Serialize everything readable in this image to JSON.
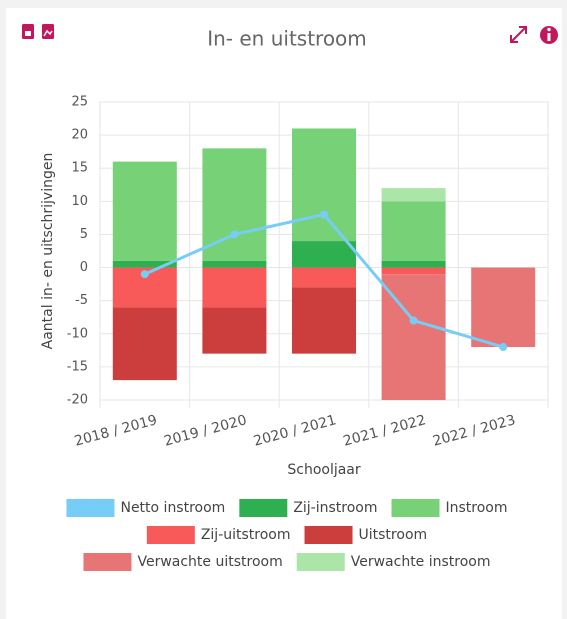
{
  "chart_data": {
    "type": "bar",
    "title": "In- en uitstroom",
    "xlabel": "Schooljaar",
    "ylabel": "Aantal in- en uitschrijvingen",
    "categories": [
      "2018 / 2019",
      "2019 / 2020",
      "2020 / 2021",
      "2021 / 2022",
      "2022 / 2023"
    ],
    "stacked": true,
    "grid": true,
    "legend": "bottom",
    "ylim": [
      -20,
      25
    ],
    "yticks": [
      -20,
      -15,
      -10,
      -5,
      0,
      5,
      10,
      15,
      20,
      25
    ],
    "series": [
      {
        "name": "Netto instroom",
        "type": "line",
        "color": "#76cdf5",
        "values": [
          -1,
          5,
          8,
          -8,
          -12
        ]
      },
      {
        "name": "Zij-instroom",
        "color": "#2fb050",
        "values": [
          1,
          1,
          4,
          1,
          0
        ]
      },
      {
        "name": "Instroom",
        "color": "#77d177",
        "values": [
          15,
          17,
          17,
          9,
          0
        ]
      },
      {
        "name": "Zij-uitstroom",
        "color": "#f85a5a",
        "values": [
          -6,
          -6,
          -3,
          -1,
          0
        ]
      },
      {
        "name": "Uitstroom",
        "color": "#cc3d3d",
        "values": [
          -11,
          -7,
          -10,
          0,
          0
        ]
      },
      {
        "name": "Verwachte uitstroom",
        "color": "#e87575",
        "values": [
          0,
          0,
          0,
          -19,
          -12
        ]
      },
      {
        "name": "Verwachte instroom",
        "color": "#abe6a8",
        "values": [
          0,
          0,
          0,
          2,
          0
        ]
      }
    ]
  }
}
